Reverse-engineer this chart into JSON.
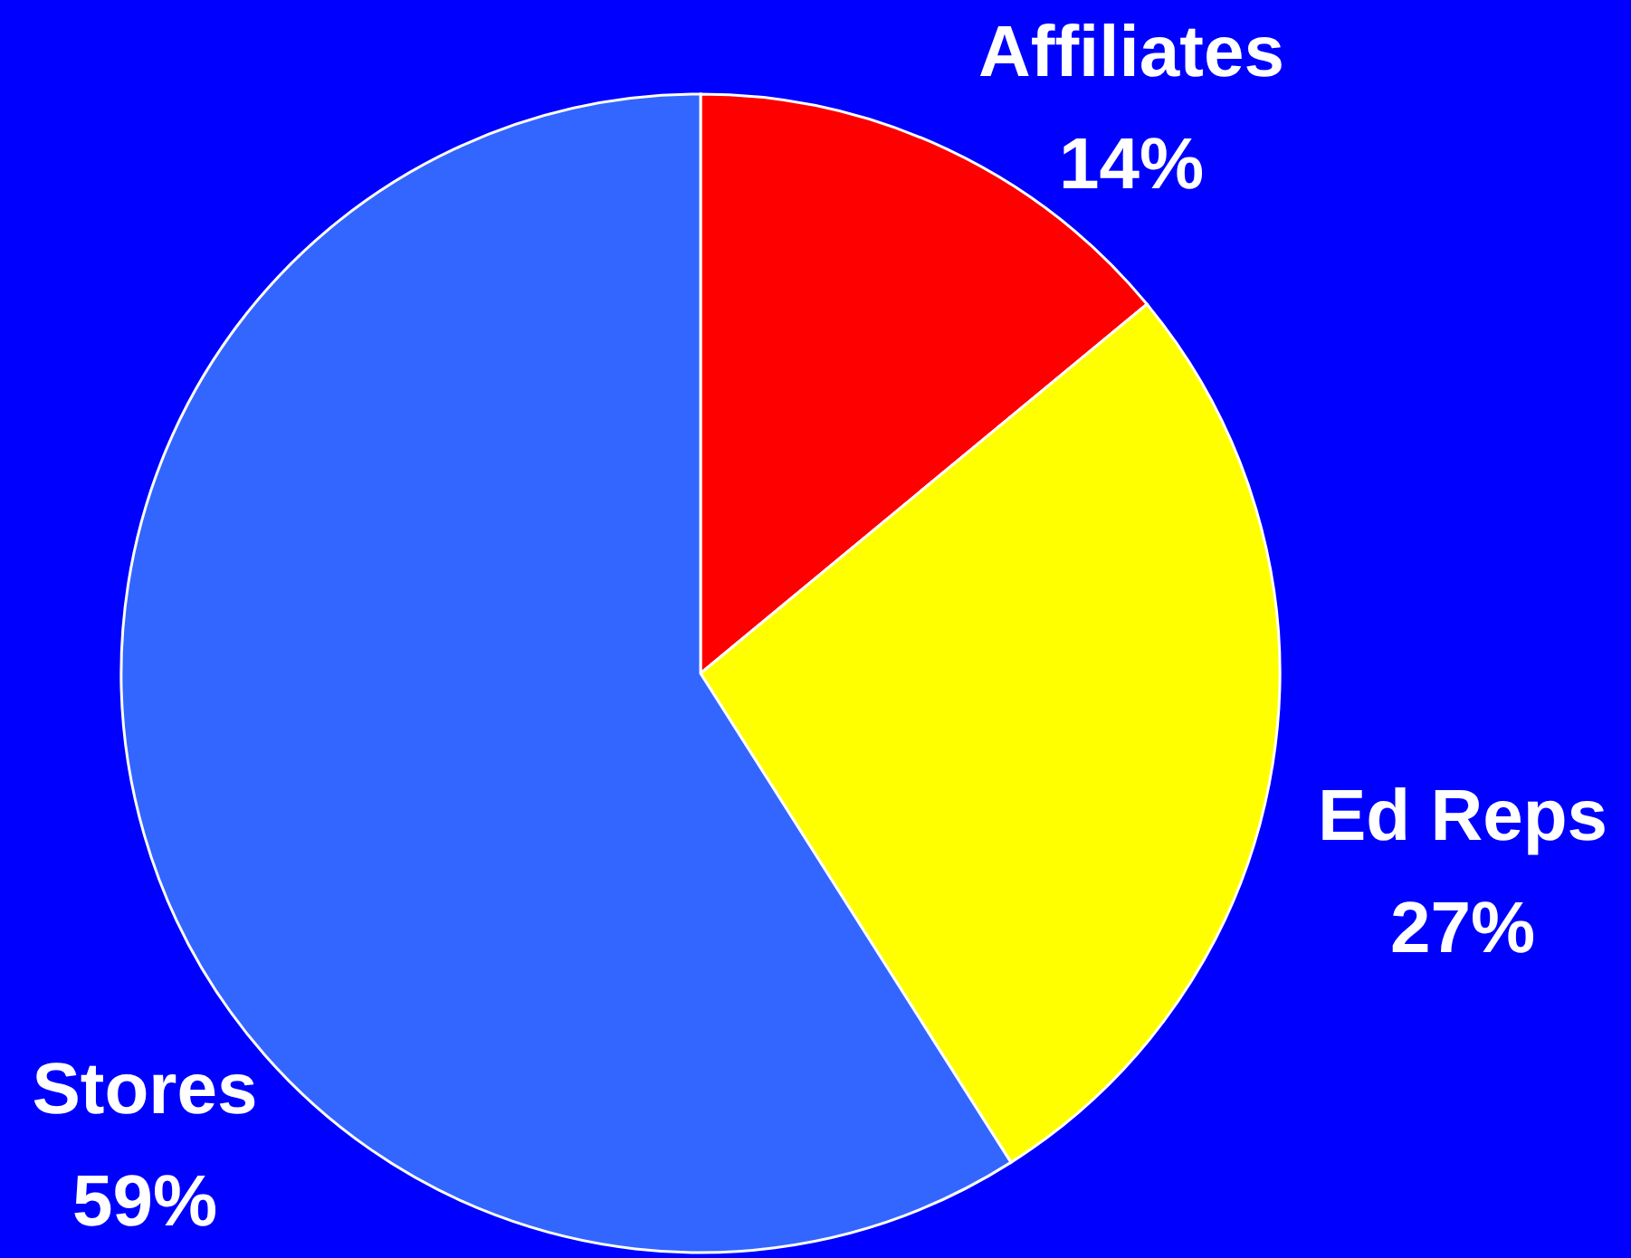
{
  "chart_data": {
    "type": "pie",
    "categories": [
      "Affiliates",
      "Ed Reps",
      "Stores"
    ],
    "values": [
      14,
      27,
      59
    ],
    "value_labels": [
      "14%",
      "27%",
      "59%"
    ],
    "colors": [
      "#ff0000",
      "#ffff00",
      "#3366ff"
    ]
  }
}
